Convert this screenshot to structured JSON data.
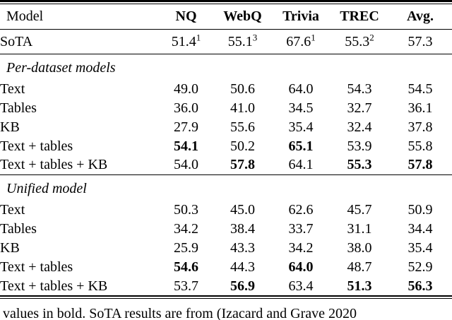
{
  "colors": {
    "background": "#ffffff",
    "text": "#000000",
    "rule": "#000000"
  },
  "table": {
    "columns": [
      {
        "label": "Model",
        "bold": false
      },
      {
        "label": "NQ",
        "bold": true
      },
      {
        "label": "WebQ",
        "bold": true
      },
      {
        "label": "Trivia",
        "bold": true
      },
      {
        "label": "TREC",
        "bold": true
      },
      {
        "label": "Avg.",
        "bold": true
      }
    ],
    "rows": [
      {
        "type": "data",
        "style": "sota",
        "model": "SoTA",
        "rule_after": true,
        "cells": [
          {
            "v": "51.4",
            "sup": "1"
          },
          {
            "v": "55.1",
            "sup": "3"
          },
          {
            "v": "67.6",
            "sup": "1"
          },
          {
            "v": "55.3",
            "sup": "2"
          },
          {
            "v": "57.3"
          }
        ]
      },
      {
        "type": "section",
        "label": "Per-dataset models"
      },
      {
        "type": "data",
        "model": "Text",
        "cells": [
          {
            "v": "49.0"
          },
          {
            "v": "50.6"
          },
          {
            "v": "64.0"
          },
          {
            "v": "54.3"
          },
          {
            "v": "54.5"
          }
        ]
      },
      {
        "type": "data",
        "model": "Tables",
        "cells": [
          {
            "v": "36.0"
          },
          {
            "v": "41.0"
          },
          {
            "v": "34.5"
          },
          {
            "v": "32.7"
          },
          {
            "v": "36.1"
          }
        ]
      },
      {
        "type": "data",
        "model": "KB",
        "cells": [
          {
            "v": "27.9"
          },
          {
            "v": "55.6"
          },
          {
            "v": "35.4"
          },
          {
            "v": "32.4"
          },
          {
            "v": "37.8"
          }
        ]
      },
      {
        "type": "data",
        "model": "Text + tables",
        "cells": [
          {
            "v": "54.1",
            "bold": true
          },
          {
            "v": "50.2"
          },
          {
            "v": "65.1",
            "bold": true
          },
          {
            "v": "53.9"
          },
          {
            "v": "55.8"
          }
        ]
      },
      {
        "type": "data",
        "model": "Text + tables + KB",
        "rule_after": true,
        "cells": [
          {
            "v": "54.0"
          },
          {
            "v": "57.8",
            "bold": true
          },
          {
            "v": "64.1"
          },
          {
            "v": "55.3",
            "bold": true
          },
          {
            "v": "57.8",
            "bold": true
          }
        ]
      },
      {
        "type": "section",
        "label": "Unified model"
      },
      {
        "type": "data",
        "model": "Text",
        "cells": [
          {
            "v": "50.3"
          },
          {
            "v": "45.0"
          },
          {
            "v": "62.6"
          },
          {
            "v": "45.7"
          },
          {
            "v": "50.9"
          }
        ]
      },
      {
        "type": "data",
        "model": "Tables",
        "cells": [
          {
            "v": "34.2"
          },
          {
            "v": "38.4"
          },
          {
            "v": "33.7"
          },
          {
            "v": "31.1"
          },
          {
            "v": "34.4"
          }
        ]
      },
      {
        "type": "data",
        "model": "KB",
        "cells": [
          {
            "v": "25.9"
          },
          {
            "v": "43.3"
          },
          {
            "v": "34.2"
          },
          {
            "v": "38.0"
          },
          {
            "v": "35.4"
          }
        ]
      },
      {
        "type": "data",
        "model": "Text + tables",
        "cells": [
          {
            "v": "54.6",
            "bold": true
          },
          {
            "v": "44.3"
          },
          {
            "v": "64.0",
            "bold": true
          },
          {
            "v": "48.7"
          },
          {
            "v": "52.9"
          }
        ]
      },
      {
        "type": "data",
        "model": "Text + tables + KB",
        "cells": [
          {
            "v": "53.7"
          },
          {
            "v": "56.9",
            "bold": true
          },
          {
            "v": "63.4"
          },
          {
            "v": "51.3",
            "bold": true
          },
          {
            "v": "56.3",
            "bold": true
          }
        ]
      }
    ]
  },
  "caption_fragment": "values in bold. SoTA results are from (Izacard and Grave 2020"
}
